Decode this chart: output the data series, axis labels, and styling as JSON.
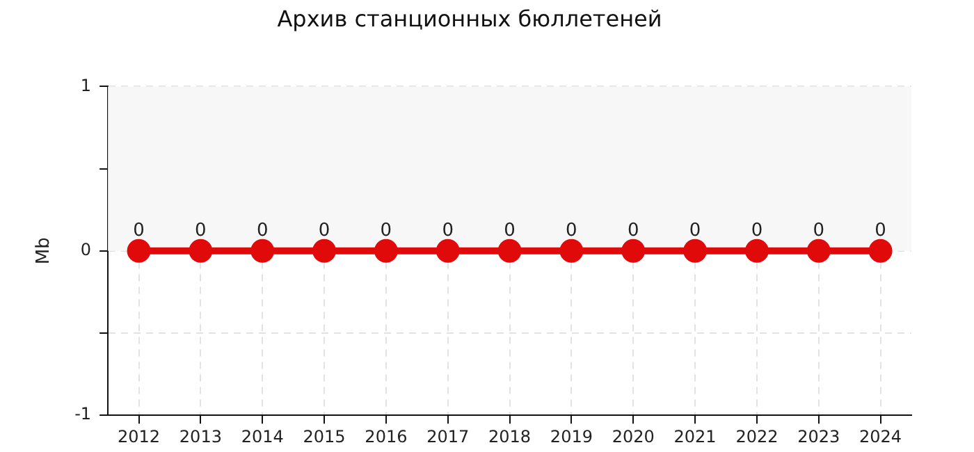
{
  "chart_data": {
    "type": "line",
    "title": "Архив станционных бюллетеней",
    "ylabel": "Mb",
    "categories": [
      "2012",
      "2013",
      "2014",
      "2015",
      "2016",
      "2017",
      "2018",
      "2019",
      "2020",
      "2021",
      "2022",
      "2023",
      "2024"
    ],
    "series": [
      {
        "color": "#e00a0a",
        "values": [
          0,
          0,
          0,
          0,
          0,
          0,
          0,
          0,
          0,
          0,
          0,
          0,
          0
        ]
      }
    ],
    "ylim": [
      -1,
      1
    ],
    "yticks": [
      -1,
      {
        "value": -0.5,
        "label": null
      },
      0,
      {
        "value": 0.5,
        "label": null
      },
      1
    ],
    "bands": [
      {
        "axis": "y",
        "from": 0,
        "to": 1,
        "color": "#f7f7f7"
      }
    ],
    "grid": true,
    "legend": false,
    "marker": "circle",
    "line_style": "solid",
    "data_labels": true
  }
}
